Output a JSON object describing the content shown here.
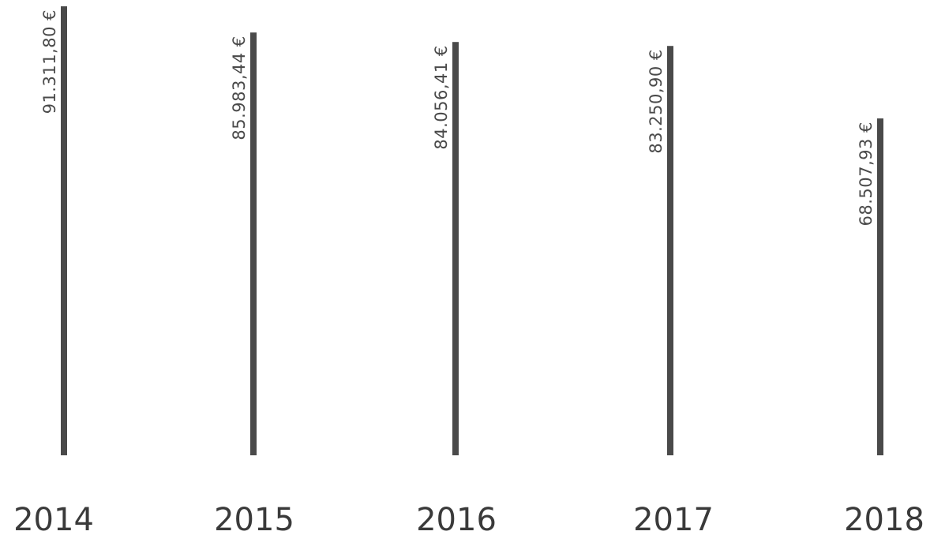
{
  "chart_data": {
    "type": "bar",
    "categories": [
      "2014",
      "2015",
      "2016",
      "2017",
      "2018"
    ],
    "values": [
      91311.8,
      85983.44,
      84056.41,
      83250.9,
      68507.93
    ],
    "value_labels": [
      "91.311,80 €",
      "85.983,44 €",
      "84.056,41 €",
      "83.250,90 €",
      "68.507,93 €"
    ],
    "title": "",
    "xlabel": "",
    "ylabel": "",
    "ylim": [
      0,
      91311.8
    ],
    "grid": false,
    "legend": "none",
    "bar_color": "#4a4a4a",
    "text_color": "#4a4a4a"
  }
}
